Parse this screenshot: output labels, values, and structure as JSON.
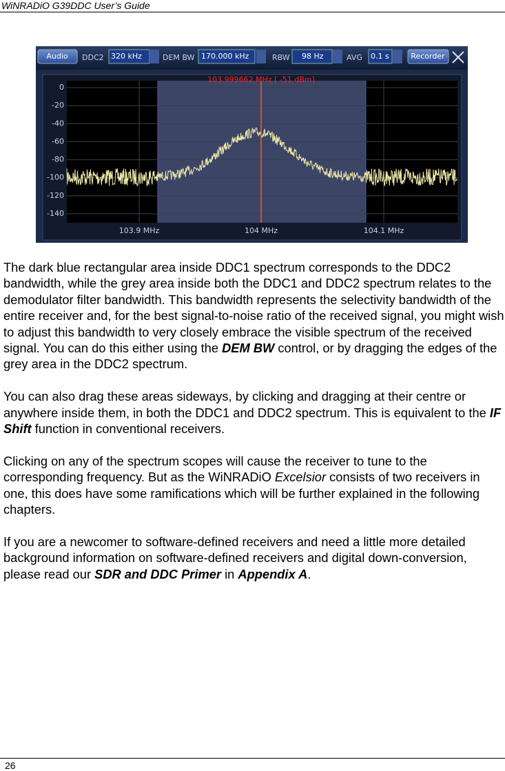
{
  "header": {
    "title": "WiNRADiO G39DDC User’s Guide"
  },
  "figure": {
    "toolbar": {
      "audio": "Audio",
      "ddc2_label": "DDC2",
      "ddc2_value": "320 kHz",
      "dem_bw_label": "DEM BW",
      "dem_bw_value": "170.000 kHz",
      "rbw_label": "RBW",
      "rbw_value": "98 Hz",
      "avg_label": "AVG",
      "avg_value": "0.1 s",
      "recorder": "Recorder"
    },
    "readout": "103.999662 MHz [  -51 dBm]",
    "y_labels": [
      "0",
      "-20",
      "-40",
      "-60",
      "-80",
      "-100",
      "-120",
      "-140"
    ],
    "x_labels": [
      "103.9 MHz",
      "104 MHz",
      "104.1 MHz"
    ]
  },
  "paragraphs": [
    [
      {
        "text": "The dark blue rectangular area inside DDC1 spectrum corresponds to the DDC2 bandwidth, while the grey area inside both the DDC1 and DDC2 spectrum relates to the demodulator filter bandwidth. This bandwidth represents the selectivity bandwidth of the entire receiver and, for the best signal-to-noise ratio of the received signal, you might wish to adjust this bandwidth to very closely embrace the visible spectrum of the received signal. You can do this either using the ",
        "style": "normal"
      },
      {
        "text": "DEM BW",
        "style": "bold-italic"
      },
      {
        "text": " control, or by dragging the edges of the grey area in the DDC2 spectrum.",
        "style": "normal"
      }
    ],
    [
      {
        "text": "You can also drag these areas sideways, by clicking and dragging at their centre or anywhere inside them, in both the DDC1 and DDC2 spectrum. This is equivalent to the ",
        "style": "normal"
      },
      {
        "text": "IF Shift",
        "style": "bold-italic"
      },
      {
        "text": " function in conventional receivers.",
        "style": "normal"
      }
    ],
    [
      {
        "text": "Clicking on any of the spectrum scopes will cause the receiver to tune to the corresponding frequency. But as the WiNRADiO ",
        "style": "normal"
      },
      {
        "text": "Excelsior",
        "style": "italic"
      },
      {
        "text": " consists of two receivers in one, this does have some ramifications which will be further explained in the following chapters.",
        "style": "normal"
      }
    ],
    [
      {
        "text": "If you are a newcomer to software-defined receivers and need a little more detailed background information on software-defined receivers and digital down-conversion, please read our ",
        "style": "normal"
      },
      {
        "text": "SDR and DDC Primer",
        "style": "bold-italic"
      },
      {
        "text": " in ",
        "style": "normal"
      },
      {
        "text": "Appendix A",
        "style": "bold-italic"
      },
      {
        "text": ".",
        "style": "normal"
      }
    ]
  ],
  "footer": {
    "page": "26"
  }
}
